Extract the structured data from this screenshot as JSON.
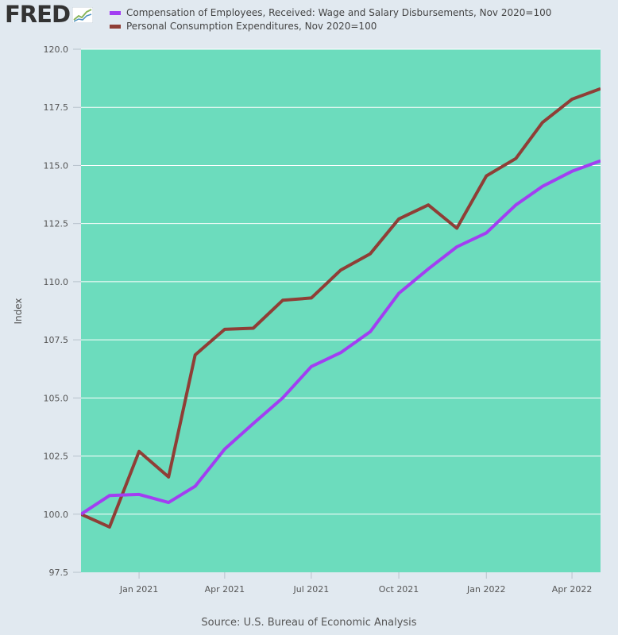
{
  "logo": {
    "text": "FRED",
    "icon": "trend-line-icon"
  },
  "source": "Source: U.S. Bureau of Economic Analysis",
  "colors": {
    "plot_bg": "#6cdcbd",
    "page_bg": "#e1e9f0",
    "grid": "#ffffff",
    "series_wages": "#a23ef2",
    "series_pce": "#8f3e36"
  },
  "chart_data": {
    "type": "line",
    "ylabel": "Index",
    "xlabel": "",
    "ylim": [
      97.5,
      120.0
    ],
    "yticks": [
      "97.5",
      "100.0",
      "102.5",
      "105.0",
      "107.5",
      "110.0",
      "112.5",
      "115.0",
      "117.5",
      "120.0"
    ],
    "xlim": [
      "2020-11-01",
      "2022-05-01"
    ],
    "xticks": [
      {
        "date": "2021-01-01",
        "label": "Jan 2021"
      },
      {
        "date": "2021-04-01",
        "label": "Apr 2021"
      },
      {
        "date": "2021-07-01",
        "label": "Jul 2021"
      },
      {
        "date": "2021-10-01",
        "label": "Oct 2021"
      },
      {
        "date": "2022-01-01",
        "label": "Jan 2022"
      },
      {
        "date": "2022-04-01",
        "label": "Apr 2022"
      }
    ],
    "grid": true,
    "legend_position": "top-left",
    "x": [
      "2020-11-01",
      "2020-12-01",
      "2021-01-01",
      "2021-02-01",
      "2021-03-01",
      "2021-04-01",
      "2021-05-01",
      "2021-06-01",
      "2021-07-01",
      "2021-08-01",
      "2021-09-01",
      "2021-10-01",
      "2021-11-01",
      "2021-12-01",
      "2022-01-01",
      "2022-02-01",
      "2022-03-01",
      "2022-04-01",
      "2022-05-01"
    ],
    "series": [
      {
        "name": "Compensation of Employees, Received: Wage and Salary Disbursements, Nov 2020=100",
        "values": [
          100.0,
          100.8,
          100.85,
          100.5,
          101.2,
          102.8,
          103.9,
          105.0,
          106.35,
          106.95,
          107.85,
          109.5,
          110.55,
          111.5,
          112.1,
          113.3,
          114.1,
          114.75,
          115.2
        ]
      },
      {
        "name": "Personal Consumption Expenditures, Nov 2020=100",
        "values": [
          100.0,
          99.45,
          102.7,
          101.6,
          106.85,
          107.95,
          108.0,
          109.2,
          109.3,
          110.5,
          111.2,
          112.7,
          113.3,
          112.3,
          114.55,
          115.3,
          116.85,
          117.85,
          118.3
        ]
      }
    ]
  }
}
